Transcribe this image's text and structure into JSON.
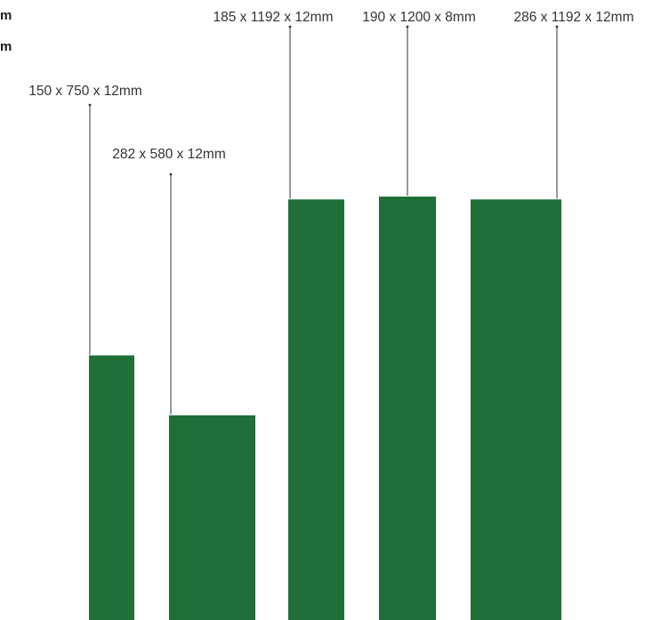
{
  "colors": {
    "tile_fill": "#206f38",
    "leader_line": "#333333"
  },
  "left_fragments": [
    "m",
    "m"
  ],
  "tiles": [
    {
      "label": "150 x 750 x 12mm",
      "width_mm": 150,
      "height_mm": 750,
      "thickness_mm": 12
    },
    {
      "label": "282 x 580 x 12mm",
      "width_mm": 282,
      "height_mm": 580,
      "thickness_mm": 12
    },
    {
      "label": "185 x 1192 x 12mm",
      "width_mm": 185,
      "height_mm": 1192,
      "thickness_mm": 12
    },
    {
      "label": "190 x 1200 x 8mm",
      "width_mm": 190,
      "height_mm": 1200,
      "thickness_mm": 8
    },
    {
      "label": "286 x 1192 x 12mm",
      "width_mm": 286,
      "height_mm": 1192,
      "thickness_mm": 12
    }
  ]
}
